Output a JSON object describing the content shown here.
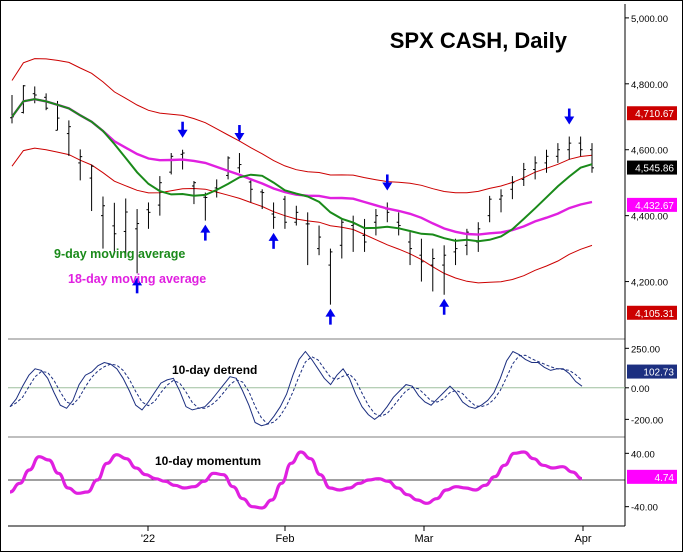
{
  "chart_data": {
    "type": "line",
    "title": "SPX CASH, Daily",
    "x_tick_labels": [
      "'22",
      "Feb",
      "Mar",
      "Apr"
    ],
    "legend": [
      {
        "label": "9-day moving average",
        "color": "#1a8a1a"
      },
      {
        "label": "18-day moving average",
        "color": "#e020e0"
      }
    ],
    "colors": {
      "bars": "#000000",
      "band": "#cc0000",
      "ma9": "#1a8a1a",
      "ma18": "#e020e0",
      "arrows": "#0000ee",
      "detrend": "#1c2f80",
      "momentum": "#e020e0",
      "zero_line": "#9ebf9e"
    },
    "panels": {
      "price": {
        "ylim": [
          4050,
          5030
        ],
        "y_ticks": [
          {
            "value": 5000,
            "label": "5,000.00"
          },
          {
            "value": 4800,
            "label": "4,800.00"
          },
          {
            "value": 4600,
            "label": "4,600.00"
          },
          {
            "value": 4400,
            "label": "4,400.00"
          },
          {
            "value": 4200,
            "label": "4,200.00"
          }
        ],
        "value_tags": [
          {
            "value": 4710.67,
            "label": "4,710.67",
            "color": "#cc0000",
            "fg": "#ffffff"
          },
          {
            "value": 4545.86,
            "label": "4,545.86",
            "color": "#000000",
            "fg": "#ffffff"
          },
          {
            "value": 4432.67,
            "label": "4,432.67",
            "color": "#ff00ff",
            "fg": "#ffffff"
          },
          {
            "value": 4105.31,
            "label": "4,105.31",
            "color": "#cc0000",
            "fg": "#ffffff"
          }
        ],
        "bars": [
          [
            4697,
            4766,
            4680,
            4700
          ],
          [
            4713,
            4796,
            4710,
            4794
          ],
          [
            4770,
            4792,
            4741,
            4766
          ],
          [
            4759,
            4771,
            4720,
            4726
          ],
          [
            4659,
            4748,
            4659,
            4696
          ],
          [
            4649,
            4689,
            4581,
            4670
          ],
          [
            4560,
            4601,
            4507,
            4579
          ],
          [
            4514,
            4555,
            4414,
            4550
          ],
          [
            4400,
            4458,
            4300,
            4430
          ],
          [
            4369,
            4439,
            4292,
            4345
          ],
          [
            4352,
            4452,
            4275,
            4411
          ],
          [
            4360,
            4420,
            4225,
            4376
          ],
          [
            4418,
            4440,
            4360,
            4410
          ],
          [
            4432,
            4520,
            4400,
            4500
          ],
          [
            4532,
            4590,
            4525,
            4580
          ],
          [
            4586,
            4600,
            4540,
            4590
          ],
          [
            4490,
            4505,
            4435,
            4500
          ],
          [
            4456,
            4470,
            4385,
            4455
          ],
          [
            4484,
            4510,
            4455,
            4482
          ],
          [
            4522,
            4580,
            4510,
            4575
          ],
          [
            4545,
            4590,
            4530,
            4555
          ],
          [
            4502,
            4512,
            4440,
            4480
          ],
          [
            4472,
            4480,
            4420,
            4470
          ],
          [
            4405,
            4440,
            4360,
            4395
          ],
          [
            4450,
            4460,
            4360,
            4380
          ],
          [
            4380,
            4430,
            4370,
            4410
          ],
          [
            4375,
            4410,
            4250,
            4375
          ],
          [
            4300,
            4370,
            4280,
            4335
          ],
          [
            4250,
            4300,
            4130,
            4290
          ],
          [
            4310,
            4390,
            4270,
            4380
          ],
          [
            4370,
            4400,
            4290,
            4375
          ],
          [
            4340,
            4390,
            4290,
            4320
          ],
          [
            4380,
            4420,
            4340,
            4400
          ],
          [
            4420,
            4440,
            4380,
            4410
          ],
          [
            4380,
            4410,
            4340,
            4370
          ],
          [
            4320,
            4350,
            4250,
            4300
          ],
          [
            4280,
            4330,
            4200,
            4260
          ],
          [
            4250,
            4300,
            4170,
            4270
          ],
          [
            4250,
            4310,
            4160,
            4280
          ],
          [
            4290,
            4330,
            4250,
            4300
          ],
          [
            4310,
            4360,
            4280,
            4350
          ],
          [
            4320,
            4380,
            4290,
            4360
          ],
          [
            4400,
            4460,
            4380,
            4450
          ],
          [
            4450,
            4480,
            4410,
            4460
          ],
          [
            4480,
            4520,
            4450,
            4500
          ],
          [
            4510,
            4560,
            4490,
            4540
          ],
          [
            4540,
            4580,
            4510,
            4560
          ],
          [
            4560,
            4600,
            4530,
            4580
          ],
          [
            4580,
            4620,
            4560,
            4600
          ],
          [
            4600,
            4640,
            4570,
            4620
          ],
          [
            4620,
            4640,
            4580,
            4600
          ],
          [
            4600,
            4620,
            4530,
            4545
          ]
        ]
      },
      "detrend": {
        "ylim": [
          -280,
          290
        ],
        "y_ticks": [
          {
            "value": 250,
            "label": "250.00"
          },
          {
            "value": 0,
            "label": "0.00"
          },
          {
            "value": -200,
            "label": "-200.00"
          }
        ],
        "value_tag": {
          "value": 102.73,
          "label": "102.73",
          "color": "#1c2f80",
          "fg": "#ffffff"
        },
        "label": "10-day detrend",
        "series": [
          -120,
          -70,
          10,
          80,
          120,
          110,
          60,
          -30,
          -110,
          -130,
          -80,
          20,
          80,
          100,
          140,
          160,
          150,
          120,
          60,
          -20,
          -110,
          -140,
          -90,
          -30,
          30,
          50,
          60,
          -20,
          -120,
          -140,
          -130,
          -120,
          -80,
          -30,
          20,
          70,
          60,
          -20,
          -110,
          -220,
          -240,
          -230,
          -180,
          -120,
          -40,
          80,
          180,
          230,
          180,
          120,
          60,
          20,
          80,
          120,
          60,
          -40,
          -120,
          -170,
          -200,
          -170,
          -120,
          -60,
          -20,
          20,
          10,
          -50,
          -90,
          -110,
          -70,
          -30,
          10,
          -30,
          -90,
          -120,
          -130,
          -110,
          -80,
          -30,
          60,
          170,
          230,
          210,
          180,
          160,
          160,
          130,
          110,
          120,
          120,
          90,
          40,
          10
        ]
      },
      "momentum": {
        "ylim": [
          -60,
          60
        ],
        "y_ticks": [
          {
            "value": 40,
            "label": "40.00"
          },
          {
            "value": -40,
            "label": "-40.00"
          }
        ],
        "value_tag": {
          "value": 4.74,
          "label": "4.74",
          "color": "#ff00ff",
          "fg": "#ffffff"
        },
        "label": "10-day momentum",
        "series": [
          -18,
          -5,
          15,
          35,
          30,
          10,
          -12,
          -20,
          -18,
          0,
          25,
          38,
          32,
          18,
          8,
          2,
          -2,
          -8,
          -12,
          -10,
          -2,
          10,
          8,
          -10,
          -28,
          -40,
          -42,
          -30,
          -5,
          25,
          42,
          32,
          8,
          -12,
          -15,
          -12,
          -5,
          0,
          2,
          -2,
          -12,
          -22,
          -30,
          -35,
          -28,
          -15,
          -10,
          -12,
          -15,
          -8,
          5,
          22,
          40,
          42,
          32,
          22,
          18,
          20,
          12,
          2
        ]
      }
    }
  }
}
